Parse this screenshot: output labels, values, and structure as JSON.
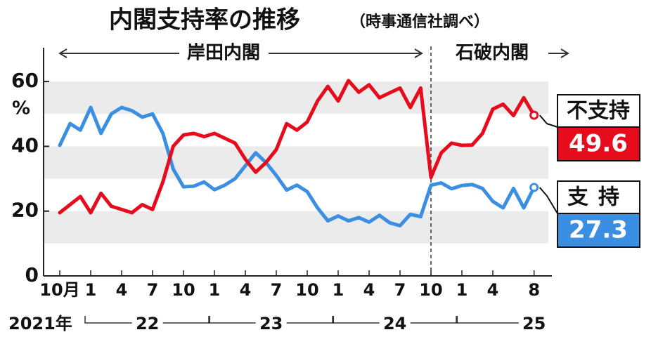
{
  "chart_data": {
    "type": "line",
    "title": "内閣支持率の推移",
    "subtitle": "（時事通信社調べ）",
    "y_label": "%",
    "annotations": [
      "岸田内閣",
      "石破内閣"
    ],
    "year_labels": [
      "2021年",
      "22",
      "23",
      "24",
      "25"
    ],
    "categories": [
      "10月",
      null,
      null,
      "1",
      null,
      null,
      "4",
      null,
      null,
      "7",
      null,
      null,
      "10",
      null,
      null,
      "1",
      null,
      null,
      "4",
      null,
      null,
      "7",
      null,
      null,
      "10",
      null,
      null,
      "1",
      null,
      null,
      "4",
      null,
      null,
      "7",
      null,
      null,
      "10",
      null,
      null,
      "1",
      null,
      null,
      "4",
      null,
      null,
      null,
      "8"
    ],
    "series": [
      {
        "name": "支持",
        "color": "#3a8fe3",
        "values": [
          40.3,
          47,
          45,
          52,
          44,
          50,
          52,
          51,
          49,
          50,
          44,
          33,
          27.5,
          27.7,
          29,
          26.6,
          28,
          30,
          34,
          38,
          35,
          31,
          26.5,
          28,
          26,
          21,
          17,
          18.5,
          17,
          18,
          16.6,
          18.7,
          16.4,
          15.5,
          19,
          18.3,
          28,
          28.7,
          26.9,
          27.9,
          28.2,
          27,
          23,
          21,
          27,
          21,
          27.3
        ]
      },
      {
        "name": "不支持",
        "color": "#e60c1c",
        "values": [
          19.5,
          22,
          24.5,
          19.5,
          25.5,
          21.5,
          20.5,
          19.5,
          22,
          20.5,
          29,
          40,
          43.5,
          44,
          43,
          44,
          42.5,
          41,
          36,
          32,
          35,
          39,
          47,
          45,
          47.5,
          54,
          58.5,
          54,
          60.3,
          56.7,
          59,
          55,
          56.5,
          58,
          52,
          58,
          30.4,
          38,
          41,
          40.3,
          40.4,
          44,
          51.5,
          53,
          49.5,
          55,
          49.6
        ]
      }
    ],
    "ylim": [
      0,
      70
    ],
    "yticks": [
      0,
      20,
      40,
      60
    ],
    "grid": true
  }
}
